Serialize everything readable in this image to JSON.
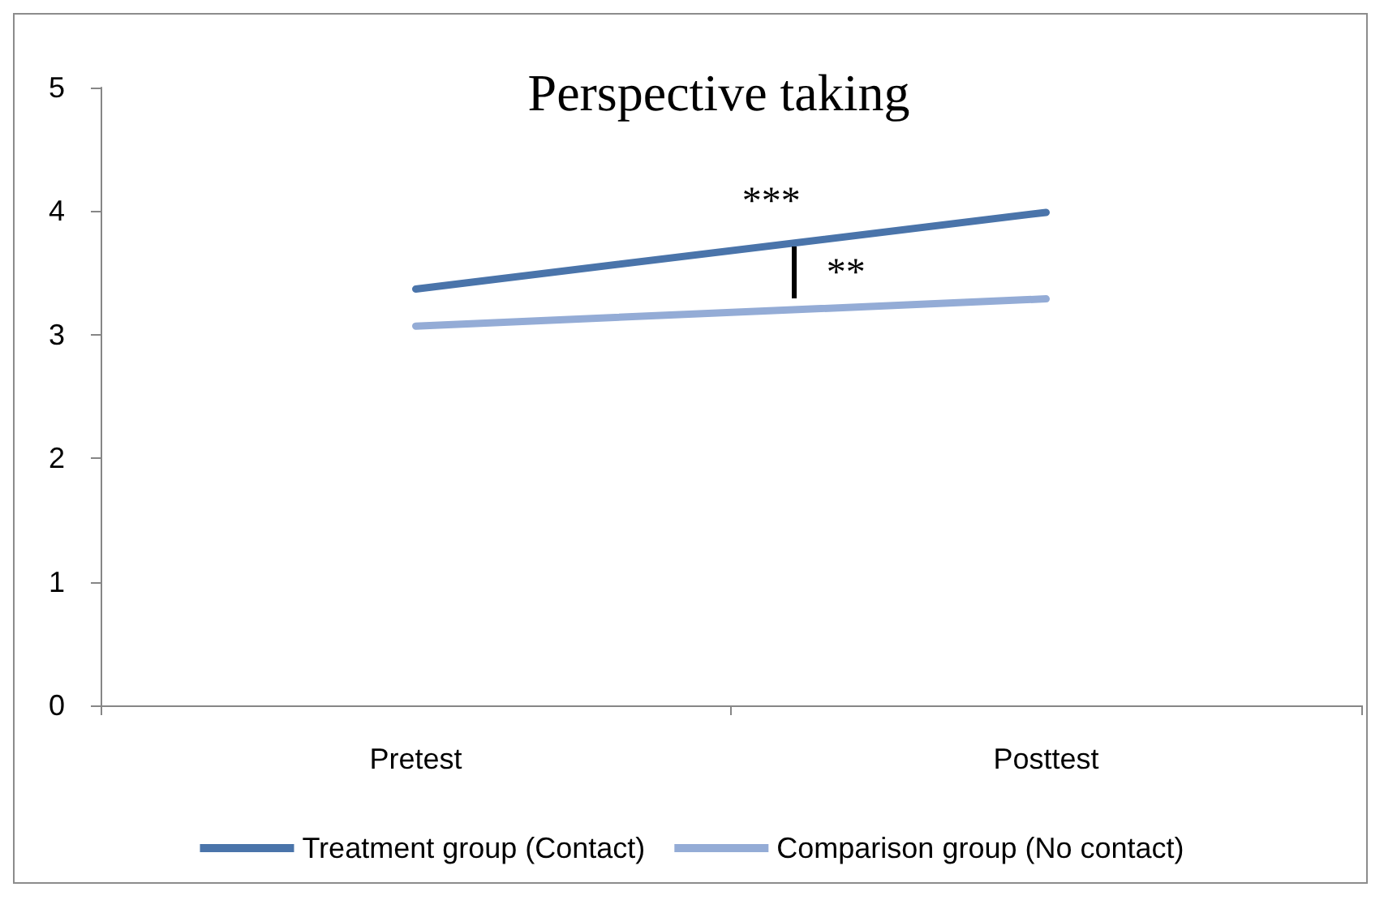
{
  "chart_data": {
    "type": "line",
    "title": "Perspective taking",
    "categories": [
      "Pretest",
      "Posttest"
    ],
    "series": [
      {
        "name": "Treatment group (Contact)",
        "color": "#4a74aa",
        "values": [
          3.37,
          3.99
        ]
      },
      {
        "name": "Comparison group (No contact)",
        "color": "#94acd6",
        "values": [
          3.07,
          3.29
        ]
      }
    ],
    "ylim": [
      0,
      5
    ],
    "yticks": [
      0,
      1,
      2,
      3,
      4,
      5
    ],
    "grid": false,
    "legend": "bottom",
    "marker": "none",
    "line_style": "solid",
    "annotations": [
      "***",
      "**"
    ]
  }
}
